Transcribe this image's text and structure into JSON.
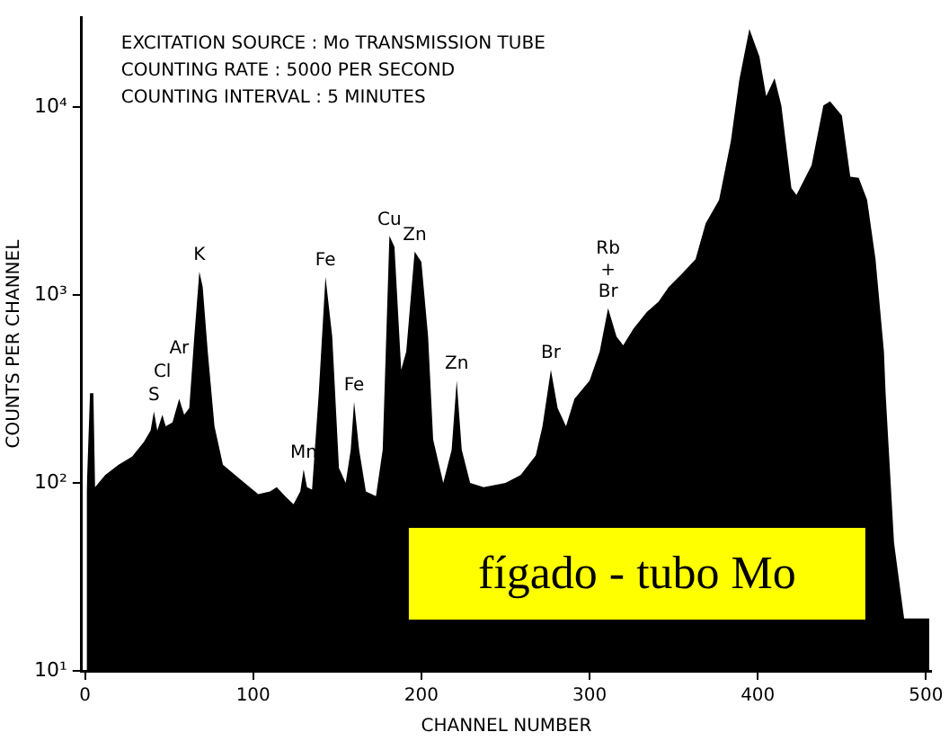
{
  "chart_data": {
    "type": "area",
    "xlabel": "CHANNEL NUMBER",
    "ylabel": "COUNTS PER CHANNEL",
    "color": "#000000",
    "x": [
      1,
      3,
      5,
      6,
      12,
      20,
      28,
      35,
      39,
      41,
      43,
      46,
      48,
      52,
      56,
      59,
      62,
      65,
      68,
      70,
      73,
      77,
      82,
      92,
      103,
      110,
      114,
      119,
      124,
      128,
      130,
      132,
      135,
      139,
      143,
      147,
      151,
      155,
      158,
      160,
      163,
      167,
      173,
      177,
      181,
      184,
      188,
      191,
      196,
      200,
      204,
      207,
      213,
      218,
      221,
      224,
      229,
      237,
      250,
      259,
      268,
      272,
      277,
      281,
      286,
      291,
      300,
      306,
      311,
      316,
      320,
      326,
      334,
      341,
      347,
      355,
      363,
      369,
      377,
      384,
      389,
      395,
      401,
      405,
      410,
      414,
      420,
      423,
      432,
      439,
      443,
      450,
      455,
      460,
      465,
      470,
      475,
      476,
      481,
      487,
      498,
      502
    ],
    "values": [
      90,
      300,
      300,
      95,
      110,
      125,
      138,
      165,
      190,
      240,
      190,
      230,
      200,
      210,
      280,
      230,
      250,
      600,
      1330,
      1100,
      500,
      200,
      125,
      105,
      87,
      90,
      95,
      85,
      77,
      90,
      118,
      95,
      92,
      300,
      1250,
      600,
      120,
      100,
      150,
      270,
      150,
      90,
      85,
      150,
      2060,
      1800,
      400,
      500,
      1700,
      1500,
      600,
      170,
      100,
      150,
      350,
      150,
      100,
      95,
      100,
      110,
      140,
      200,
      400,
      250,
      200,
      280,
      350,
      500,
      850,
      600,
      540,
      660,
      810,
      920,
      1100,
      1300,
      1550,
      2400,
      3200,
      6600,
      13900,
      26000,
      18500,
      11400,
      14200,
      10200,
      3700,
      3400,
      4900,
      10200,
      10700,
      9000,
      4250,
      4200,
      3200,
      1550,
      500,
      300,
      48,
      19,
      19,
      19
    ],
    "log": "y",
    "xlim": [
      -2,
      503
    ],
    "ylim": [
      10,
      30000
    ],
    "xticks": [
      0,
      100,
      200,
      300,
      400,
      500
    ],
    "yticks": [
      {
        "value": 10,
        "label": "10¹"
      },
      {
        "value": 100,
        "label": "10²"
      },
      {
        "value": 1000,
        "label": "10³"
      },
      {
        "value": 10000,
        "label": "10⁴"
      }
    ],
    "grid": false,
    "legend": false,
    "annotations": [
      "EXCITATION SOURCE : Mo TRANSMISSION TUBE",
      "COUNTING RATE : 5000 PER SECOND",
      "COUNTING INTERVAL : 5 MINUTES",
      {
        "text": "S",
        "x": 41,
        "y": 240
      },
      {
        "text": "Cl",
        "x": 46,
        "y": 230
      },
      {
        "text": "Ar",
        "x": 56,
        "y": 280
      },
      {
        "text": "K",
        "x": 68,
        "y": 1330
      },
      {
        "text": "Mn",
        "x": 130,
        "y": 118
      },
      {
        "text": "Fe",
        "x": 143,
        "y": 1250
      },
      {
        "text": "Fe",
        "x": 160,
        "y": 270
      },
      {
        "text": "Cu",
        "x": 181,
        "y": 2060
      },
      {
        "text": "Zn",
        "x": 196,
        "y": 1700
      },
      {
        "text": "Zn",
        "x": 221,
        "y": 350
      },
      {
        "text": "Br",
        "x": 277,
        "y": 400
      },
      {
        "text": "Rb + Br",
        "x": 311,
        "y": 850
      },
      "fígado - tubo Mo"
    ]
  }
}
